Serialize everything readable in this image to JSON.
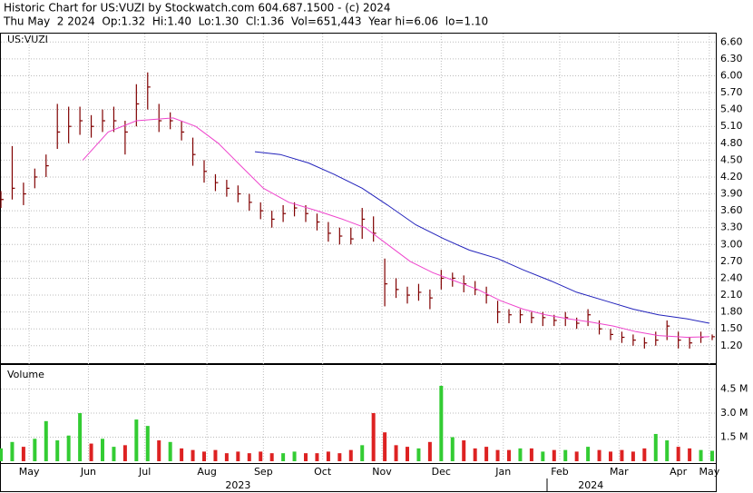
{
  "header": {
    "title": "Historic Chart for US:VUZI by Stockwatch.com 604.687.1500 - (c) 2024",
    "quote": "Thu May  2 2024  Op:1.32  Hi:1.40  Lo:1.30  Cl:1.36  Vol=651,443  Year hi=6.06  lo=1.10"
  },
  "chart_data": {
    "type": "ohlc",
    "symbol": "US:VUZI",
    "volume_title": "Volume",
    "xlim": [
      0,
      252
    ],
    "x": [
      0,
      4,
      8,
      12,
      16,
      20,
      24,
      28,
      32,
      36,
      40,
      44,
      48,
      52,
      56,
      60,
      64,
      68,
      72,
      76,
      80,
      84,
      88,
      92,
      96,
      100,
      104,
      108,
      112,
      116,
      120,
      124,
      128,
      132,
      136,
      140,
      144,
      148,
      152,
      156,
      160,
      164,
      168,
      172,
      176,
      180,
      184,
      188,
      192,
      196,
      200,
      204,
      208,
      212,
      216,
      220,
      224,
      228,
      232,
      236,
      240,
      244,
      248,
      252
    ],
    "high": [
      3.95,
      4.75,
      4.1,
      4.35,
      4.6,
      5.5,
      5.45,
      5.45,
      5.3,
      5.4,
      5.45,
      5.2,
      5.85,
      6.06,
      5.5,
      5.35,
      5.2,
      4.9,
      4.5,
      4.25,
      4.15,
      4.05,
      3.9,
      3.75,
      3.6,
      3.7,
      3.75,
      3.7,
      3.55,
      3.4,
      3.3,
      3.3,
      3.65,
      3.5,
      2.75,
      2.4,
      2.25,
      2.3,
      2.2,
      2.55,
      2.5,
      2.45,
      2.35,
      2.25,
      2.0,
      1.85,
      1.85,
      1.8,
      1.8,
      1.75,
      1.8,
      1.7,
      1.85,
      1.65,
      1.5,
      1.45,
      1.4,
      1.35,
      1.45,
      1.65,
      1.45,
      1.35,
      1.45,
      1.4
    ],
    "low": [
      3.65,
      3.8,
      3.7,
      4.0,
      4.2,
      4.7,
      4.8,
      4.95,
      4.9,
      5.0,
      5.0,
      4.6,
      5.1,
      5.4,
      5.0,
      5.05,
      4.85,
      4.4,
      4.1,
      3.95,
      3.85,
      3.75,
      3.6,
      3.45,
      3.3,
      3.4,
      3.5,
      3.4,
      3.25,
      3.05,
      3.0,
      3.0,
      3.1,
      3.05,
      1.9,
      2.05,
      1.95,
      2.0,
      1.85,
      2.2,
      2.25,
      2.15,
      2.1,
      1.95,
      1.6,
      1.6,
      1.6,
      1.6,
      1.55,
      1.55,
      1.55,
      1.5,
      1.55,
      1.4,
      1.3,
      1.25,
      1.2,
      1.15,
      1.2,
      1.3,
      1.15,
      1.15,
      1.25,
      1.3
    ],
    "close": [
      3.8,
      4.0,
      3.9,
      4.2,
      4.4,
      5.0,
      5.1,
      5.2,
      5.1,
      5.2,
      5.2,
      5.0,
      5.5,
      5.8,
      5.2,
      5.2,
      5.0,
      4.6,
      4.3,
      4.1,
      4.0,
      3.9,
      3.75,
      3.6,
      3.45,
      3.55,
      3.65,
      3.55,
      3.4,
      3.2,
      3.15,
      3.1,
      3.45,
      3.2,
      2.3,
      2.2,
      2.1,
      2.15,
      2.05,
      2.4,
      2.4,
      2.3,
      2.2,
      2.1,
      1.8,
      1.75,
      1.75,
      1.7,
      1.7,
      1.65,
      1.7,
      1.6,
      1.75,
      1.5,
      1.4,
      1.35,
      1.3,
      1.25,
      1.3,
      1.55,
      1.3,
      1.25,
      1.35,
      1.36
    ],
    "volume": [
      800000,
      1200000,
      900000,
      1400000,
      2500000,
      1300000,
      1600000,
      3000000,
      1100000,
      1400000,
      900000,
      1000000,
      2600000,
      2200000,
      1300000,
      1200000,
      800000,
      700000,
      600000,
      700000,
      500000,
      600000,
      500000,
      600000,
      500000,
      500000,
      600000,
      500000,
      500000,
      600000,
      500000,
      700000,
      1000000,
      3000000,
      1800000,
      1000000,
      900000,
      800000,
      1200000,
      4700000,
      1500000,
      1300000,
      800000,
      900000,
      700000,
      700000,
      800000,
      800000,
      600000,
      700000,
      700000,
      600000,
      900000,
      700000,
      600000,
      700000,
      600000,
      800000,
      1700000,
      1300000,
      900000,
      800000,
      700000,
      650000
    ],
    "bar_color": "#800000",
    "up_color": "#33cc33",
    "down_color": "#dd2222",
    "series": [
      {
        "color": "#ee44cc",
        "x": [
          29,
          38,
          48,
          61,
          69,
          77,
          85,
          93,
          102,
          112,
          121,
          129,
          137,
          145,
          153,
          161,
          169,
          177,
          185,
          193,
          201,
          209,
          217,
          225,
          233,
          243,
          251
        ],
        "values": [
          4.5,
          5.0,
          5.2,
          5.25,
          5.1,
          4.8,
          4.4,
          4.0,
          3.75,
          3.6,
          3.45,
          3.3,
          3.0,
          2.7,
          2.5,
          2.35,
          2.2,
          2.0,
          1.85,
          1.75,
          1.68,
          1.62,
          1.55,
          1.45,
          1.38,
          1.35,
          1.36
        ]
      },
      {
        "color": "#2222bb",
        "x": [
          90,
          99,
          109,
          118,
          128,
          137,
          147,
          157,
          166,
          176,
          185,
          195,
          204,
          214,
          224,
          233,
          243,
          251
        ],
        "values": [
          4.65,
          4.6,
          4.45,
          4.25,
          4.0,
          3.7,
          3.35,
          3.1,
          2.9,
          2.75,
          2.55,
          2.35,
          2.15,
          2.0,
          1.85,
          1.75,
          1.68,
          1.6
        ]
      }
    ],
    "ylim": [
      0.89,
      6.75
    ],
    "yticks": [
      {
        "value": 1.2,
        "label": "1.20"
      },
      {
        "value": 1.5,
        "label": "1.50"
      },
      {
        "value": 1.8,
        "label": "1.80"
      },
      {
        "value": 2.1,
        "label": "2.10"
      },
      {
        "value": 2.4,
        "label": "2.40"
      },
      {
        "value": 2.7,
        "label": "2.70"
      },
      {
        "value": 3.0,
        "label": "3.00"
      },
      {
        "value": 3.3,
        "label": "3.30"
      },
      {
        "value": 3.6,
        "label": "3.60"
      },
      {
        "value": 3.9,
        "label": "3.90"
      },
      {
        "value": 4.2,
        "label": "4.20"
      },
      {
        "value": 4.5,
        "label": "4.50"
      },
      {
        "value": 4.8,
        "label": "4.80"
      },
      {
        "value": 5.1,
        "label": "5.10"
      },
      {
        "value": 5.4,
        "label": "5.40"
      },
      {
        "value": 5.7,
        "label": "5.70"
      },
      {
        "value": 6.0,
        "label": "6.00"
      },
      {
        "value": 6.3,
        "label": "6.30"
      },
      {
        "value": 6.6,
        "label": "6.60"
      }
    ],
    "volume_ylim": [
      0,
      6000000
    ],
    "volume_ticks": [
      {
        "value": 1500000,
        "label": "1.5 M"
      },
      {
        "value": 3000000,
        "label": "3.0 M"
      },
      {
        "value": 4500000,
        "label": "4.5 M"
      }
    ],
    "xticks": [
      {
        "value": 10,
        "label": "May"
      },
      {
        "value": 31,
        "label": "Jun"
      },
      {
        "value": 51,
        "label": "Jul"
      },
      {
        "value": 73,
        "label": "Aug"
      },
      {
        "value": 93,
        "label": "Sep"
      },
      {
        "value": 114,
        "label": "Oct"
      },
      {
        "value": 135,
        "label": "Nov"
      },
      {
        "value": 156,
        "label": "Dec"
      },
      {
        "value": 178,
        "label": "Jan"
      },
      {
        "value": 198,
        "label": "Feb"
      },
      {
        "value": 219,
        "label": "Mar"
      },
      {
        "value": 240,
        "label": "Apr"
      },
      {
        "value": 251,
        "label": "May"
      }
    ],
    "years": [
      {
        "value": 84,
        "label": "2023"
      },
      {
        "value": 209,
        "label": "2024"
      }
    ],
    "grid": true
  }
}
